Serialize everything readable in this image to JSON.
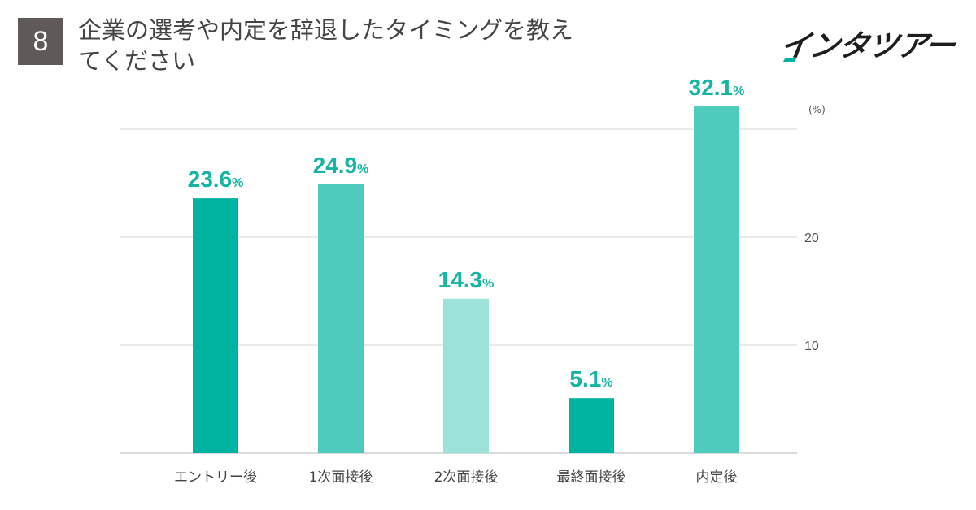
{
  "header": {
    "badge_number": "8",
    "title": "企業の選考や内定を辞退したタイミングを教えてください",
    "logo": "インタツアー"
  },
  "chart_data": {
    "type": "bar",
    "title": "企業の選考や内定を辞退したタイミングを教えてください",
    "unit_label": "(%)",
    "categories": [
      "エントリー後",
      "1次面接後",
      "2次面接後",
      "最終面接後",
      "内定後"
    ],
    "values": [
      23.6,
      24.9,
      14.3,
      5.1,
      32.1
    ],
    "value_labels": [
      "23.6",
      "24.9",
      "14.3",
      "5.1",
      "32.1"
    ],
    "value_suffix": "%",
    "bar_colors": [
      "#00b3a1",
      "#4fcbbd",
      "#9ce2da",
      "#00b3a1",
      "#4fcbbd"
    ],
    "ylim": [
      0,
      30
    ],
    "yticks": [
      10,
      20
    ],
    "ytick_labels": [
      "10",
      "20"
    ],
    "grid": true,
    "label_color": "#17b3a3"
  }
}
